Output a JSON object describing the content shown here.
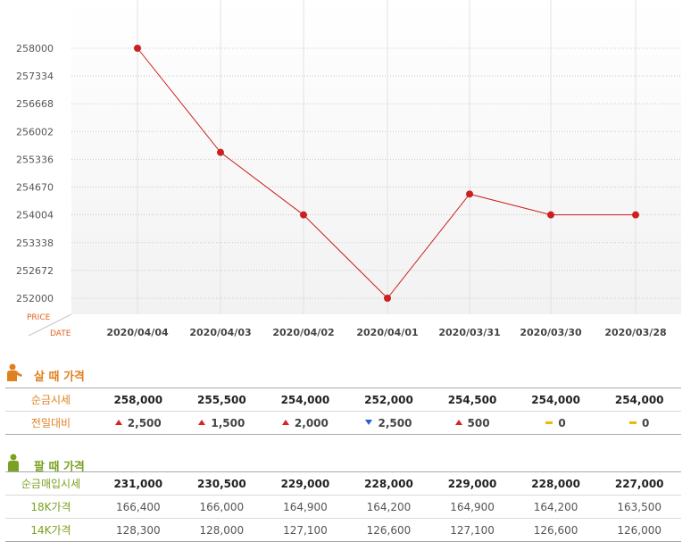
{
  "chart_data": {
    "type": "line",
    "categories": [
      "2020/04/04",
      "2020/04/03",
      "2020/04/02",
      "2020/04/01",
      "2020/03/31",
      "2020/03/30",
      "2020/03/28"
    ],
    "values": [
      258000,
      255500,
      254000,
      252000,
      254500,
      254000,
      254000
    ],
    "yticks": [
      "258000",
      "257334",
      "256668",
      "256002",
      "255336",
      "254670",
      "254004",
      "253338",
      "252672",
      "252000"
    ],
    "ylim": [
      252000,
      258000
    ],
    "ylabel": "PRICE",
    "xlabel": "DATE",
    "grid": true,
    "line_color": "#cc1f1f"
  },
  "buy": {
    "title": "살 때 가격",
    "icon": "person-orange-icon",
    "rows": [
      {
        "label": "순금시세",
        "cells": [
          "258,000",
          "255,500",
          "254,000",
          "252,000",
          "254,500",
          "254,000",
          "254,000"
        ]
      }
    ],
    "change_label": "전일대비",
    "changes": [
      {
        "dir": "up",
        "value": "2,500"
      },
      {
        "dir": "up",
        "value": "1,500"
      },
      {
        "dir": "up",
        "value": "2,000"
      },
      {
        "dir": "down",
        "value": "2,500"
      },
      {
        "dir": "up",
        "value": "500"
      },
      {
        "dir": "flat",
        "value": "0"
      },
      {
        "dir": "flat",
        "value": "0"
      }
    ]
  },
  "sell": {
    "title": "팔 때 가격",
    "icon": "person-green-icon",
    "rows": [
      {
        "label": "순금매입시세",
        "cells": [
          "231,000",
          "230,500",
          "229,000",
          "228,000",
          "229,000",
          "228,000",
          "227,000"
        ]
      },
      {
        "label": "18K가격",
        "cells": [
          "166,400",
          "166,000",
          "164,900",
          "164,200",
          "164,900",
          "164,200",
          "163,500"
        ]
      },
      {
        "label": "14K가격",
        "cells": [
          "128,300",
          "128,000",
          "127,100",
          "126,600",
          "127,100",
          "126,600",
          "126,000"
        ]
      }
    ]
  },
  "colors": {
    "orange": "#e0811f",
    "green": "#7aa11f",
    "up": "#dd2222",
    "down": "#2b5fd0",
    "flat": "#f0b800"
  }
}
